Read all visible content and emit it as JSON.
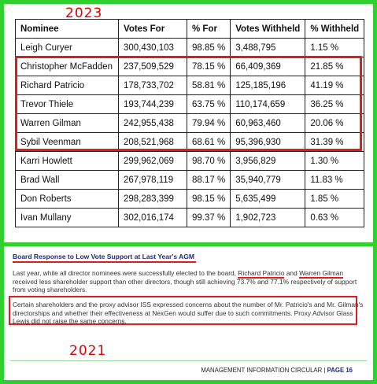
{
  "top_year": "2023",
  "bottom_year": "2021",
  "table": {
    "headers": [
      "Nominee",
      "Votes For",
      "% For",
      "Votes Withheld",
      "% Withheld"
    ],
    "rows": [
      [
        "Leigh Curyer",
        "300,430,103",
        "98.85 %",
        "3,488,795",
        "1.15 %"
      ],
      [
        "Christopher McFadden",
        "237,509,529",
        "78.15 %",
        "66,409,369",
        "21.85 %"
      ],
      [
        "Richard Patricio",
        "178,733,702",
        "58.81 %",
        "125,185,196",
        "41.19 %"
      ],
      [
        "Trevor Thiele",
        "193,744,239",
        "63.75 %",
        "110,174,659",
        "36.25 %"
      ],
      [
        "Warren Gilman",
        "242,955,438",
        "79.94 %",
        "60,963,460",
        "20.06 %"
      ],
      [
        "Sybil Veenman",
        "208,521,968",
        "68.61 %",
        "95,396,930",
        "31.39 %"
      ],
      [
        "Karri Howlett",
        "299,962,069",
        "98.70 %",
        "3,956,829",
        "1.30 %"
      ],
      [
        "Brad Wall",
        "267,978,119",
        "88.17 %",
        "35,940,779",
        "11.83 %"
      ],
      [
        "Don Roberts",
        "298,283,399",
        "98.15 %",
        "5,635,499",
        "1.85 %"
      ],
      [
        "Ivan Mullany",
        "302,016,174",
        "99.37 %",
        "1,902,723",
        "0.63 %"
      ]
    ]
  },
  "document": {
    "heading": "Board Response to Low Vote Support at Last Year's AGM",
    "para1_line1_a": "Last year, while all director nominees were successfully elected to the board, ",
    "para1_name1": "Richard Patricio",
    "para1_line1_b": " and ",
    "para1_name2": "Warren Gilman",
    "para1_rest": "received less shareholder support than other directors, though still achieving 73.7% and 77.1% respectively of support from voting shareholders.",
    "para2": "Certain shareholders and the proxy advisor ISS expressed concerns about the number of Mr. Patricio's and Mr. Gilman's directorships and whether their effectiveness at NexGen would suffer due to such commitments. Proxy Advisor Glass Lewis did not raise the same concerns.",
    "footer_text": "MANAGEMENT INFORMATION CIRCULAR | ",
    "footer_page": "PAGE 16"
  },
  "colors": {
    "frame": "#2fd12f",
    "annotation_red": "#e21b1b",
    "heading_blue": "#1f2a7a"
  }
}
